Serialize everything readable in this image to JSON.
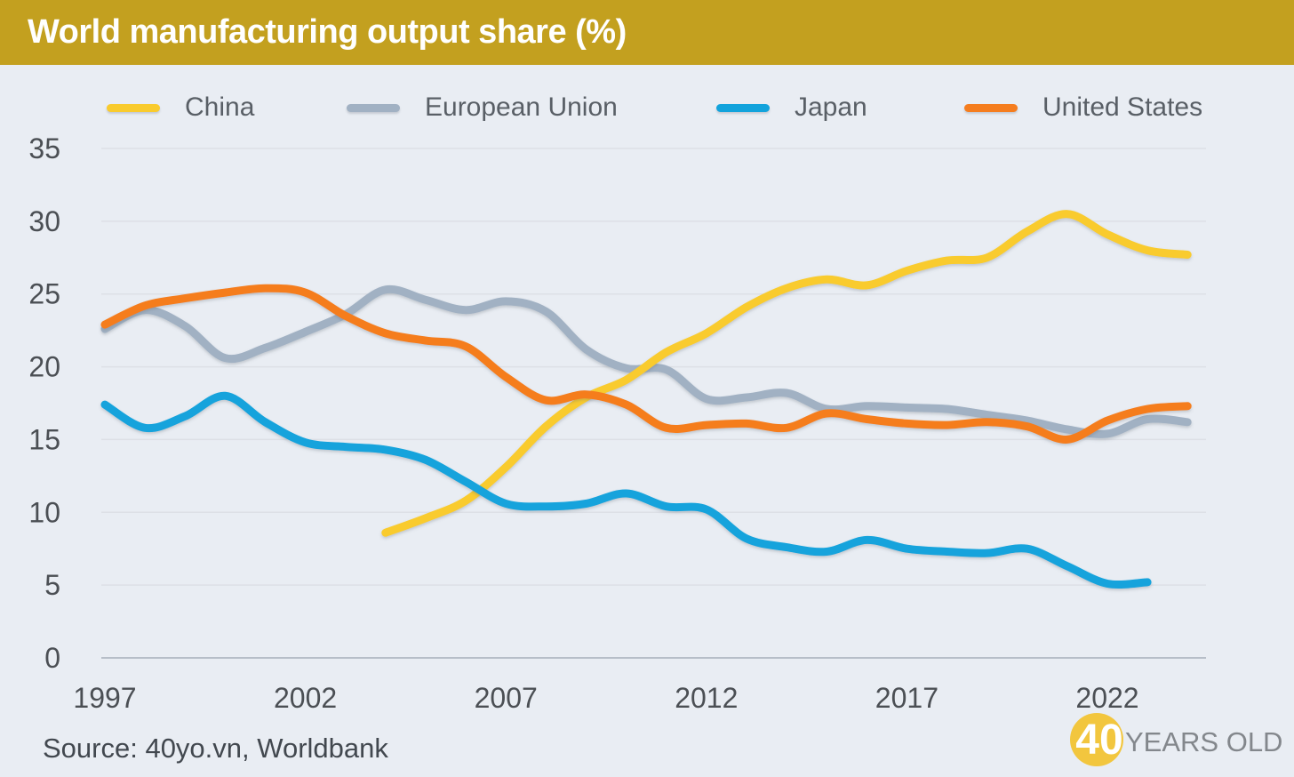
{
  "header": {
    "title": "World manufacturing output share (%)"
  },
  "legend": {
    "items": [
      {
        "label": "China",
        "color": "#F9CB2D"
      },
      {
        "label": "European Union",
        "color": "#A1B1C3"
      },
      {
        "label": "Japan",
        "color": "#12A3DC"
      },
      {
        "label": "United States",
        "color": "#F57D1E"
      }
    ]
  },
  "source": {
    "text": "Source: 40yo.vn, Worldbank"
  },
  "logo": {
    "badge": "40",
    "text": "YEARS OLD",
    "circle_color": "#F2C63E"
  },
  "colors": {
    "title_bar": "#C3A01F",
    "background": "#E9EDF3",
    "gridline": "#DDE0E6",
    "zero_axis": "#B7BEC8",
    "tick_label": "#4B4F54"
  },
  "chart_data": {
    "type": "line",
    "title": "World manufacturing output share (%)",
    "xlabel": "",
    "ylabel": "",
    "ylim": [
      0,
      35
    ],
    "yticks": [
      0,
      5,
      10,
      15,
      20,
      25,
      30,
      35
    ],
    "xticks": [
      1997,
      2002,
      2007,
      2012,
      2017,
      2022
    ],
    "x_range": [
      1997,
      2024
    ],
    "grid": true,
    "legend_position": "top",
    "series": [
      {
        "name": "China",
        "color": "#F9CB2D",
        "start_year": 2004,
        "values": [
          8.6,
          9.6,
          10.8,
          13.1,
          15.9,
          17.9,
          19.1,
          21.0,
          22.3,
          24.1,
          25.4,
          26.0,
          25.6,
          26.6,
          27.3,
          27.5,
          29.3,
          30.5,
          29.1,
          28.0,
          27.7
        ]
      },
      {
        "name": "European Union",
        "color": "#A1B1C3",
        "start_year": 1997,
        "values": [
          22.6,
          23.9,
          22.8,
          20.6,
          21.3,
          22.4,
          23.6,
          25.3,
          24.6,
          23.9,
          24.5,
          23.8,
          21.2,
          19.9,
          19.8,
          17.8,
          17.9,
          18.2,
          17.1,
          17.3,
          17.2,
          17.1,
          16.7,
          16.3,
          15.7,
          15.4,
          16.4,
          16.2
        ]
      },
      {
        "name": "Japan",
        "color": "#12A3DC",
        "start_year": 1997,
        "values": [
          17.4,
          15.8,
          16.6,
          18.0,
          16.2,
          14.8,
          14.5,
          14.3,
          13.6,
          12.1,
          10.6,
          10.4,
          10.6,
          11.3,
          10.4,
          10.2,
          8.2,
          7.6,
          7.3,
          8.1,
          7.5,
          7.3,
          7.2,
          7.5,
          6.3,
          5.1,
          5.2
        ]
      },
      {
        "name": "United States",
        "color": "#F57D1E",
        "start_year": 1997,
        "values": [
          22.9,
          24.2,
          24.7,
          25.1,
          25.4,
          25.1,
          23.5,
          22.3,
          21.8,
          21.4,
          19.3,
          17.7,
          18.1,
          17.4,
          15.8,
          16.0,
          16.1,
          15.8,
          16.8,
          16.4,
          16.1,
          16.0,
          16.2,
          15.9,
          15.0,
          16.3,
          17.1,
          17.3
        ]
      }
    ],
    "draw_order": [
      "European Union",
      "China",
      "Japan",
      "United States"
    ]
  }
}
